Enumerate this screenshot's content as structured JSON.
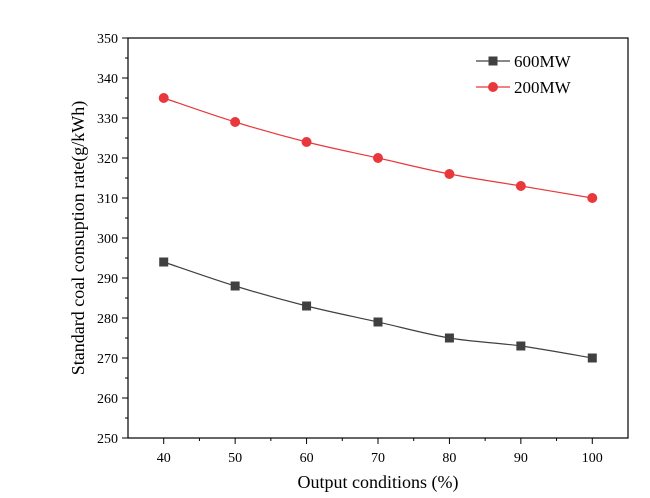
{
  "chart_data": {
    "type": "line",
    "title": "",
    "xlabel": "Output conditions (%)",
    "ylabel": "Standard coal consuption rate(g/kWh)",
    "x": [
      40,
      50,
      60,
      70,
      80,
      90,
      100
    ],
    "xlim": [
      35,
      105
    ],
    "ylim": [
      250,
      350
    ],
    "xticks": [
      40,
      50,
      60,
      70,
      80,
      90,
      100
    ],
    "yticks": [
      250,
      260,
      270,
      280,
      290,
      300,
      310,
      320,
      330,
      340,
      350
    ],
    "grid": false,
    "legend_position": "top-right",
    "series": [
      {
        "name": "600MW",
        "values": [
          294,
          288,
          283,
          279,
          275,
          273,
          270
        ],
        "color": "#404040",
        "marker": "square"
      },
      {
        "name": "200MW",
        "values": [
          335,
          329,
          324,
          320,
          316,
          313,
          310
        ],
        "color": "#e8383b",
        "marker": "circle"
      }
    ]
  }
}
